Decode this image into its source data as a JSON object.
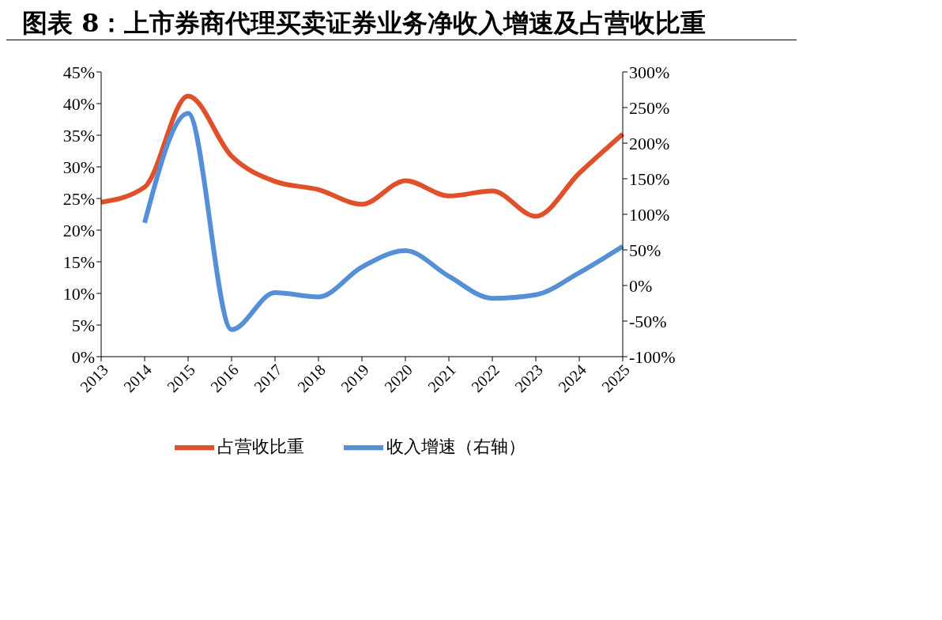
{
  "chart_data": {
    "type": "line",
    "title": "图表 8：上市券商代理买卖证券业务净收入增速及占营收比重",
    "categories": [
      "2013",
      "2014",
      "2015",
      "2016",
      "2017",
      "2018",
      "2019",
      "2020",
      "2021",
      "2022",
      "2023",
      "2024",
      "2025"
    ],
    "series": [
      {
        "name": "占营收比重",
        "color": "#e0502a",
        "values": [
          24.4,
          26.8,
          41.2,
          31.7,
          27.7,
          26.4,
          24.1,
          27.8,
          25.4,
          26.2,
          22.2,
          29.0,
          35.2
        ]
      },
      {
        "name": "收入增速（右轴）",
        "color": "#5590d6",
        "axis": "y2",
        "values": [
          null,
          88,
          242,
          -62,
          -10,
          -16,
          26,
          49,
          13,
          -18,
          -13,
          18,
          55
        ]
      }
    ],
    "ylim": [
      0,
      45
    ],
    "yticks": [
      {
        "value": 0,
        "label": "0%"
      },
      {
        "value": 5,
        "label": "5%"
      },
      {
        "value": 10,
        "label": "10%"
      },
      {
        "value": 15,
        "label": "15%"
      },
      {
        "value": 20,
        "label": "20%"
      },
      {
        "value": 25,
        "label": "25%"
      },
      {
        "value": 30,
        "label": "30%"
      },
      {
        "value": 35,
        "label": "35%"
      },
      {
        "value": 40,
        "label": "40%"
      },
      {
        "value": 45,
        "label": "45%"
      }
    ],
    "y2lim": [
      -100,
      300
    ],
    "y2ticks": [
      {
        "value": -100,
        "label": "-100%"
      },
      {
        "value": -50,
        "label": "-50%"
      },
      {
        "value": 0,
        "label": "0%"
      },
      {
        "value": 50,
        "label": "50%"
      },
      {
        "value": 100,
        "label": "100%"
      },
      {
        "value": 150,
        "label": "150%"
      },
      {
        "value": 200,
        "label": "200%"
      },
      {
        "value": 250,
        "label": "250%"
      },
      {
        "value": 300,
        "label": "300%"
      }
    ],
    "marker": "none",
    "legend": "bottom"
  }
}
